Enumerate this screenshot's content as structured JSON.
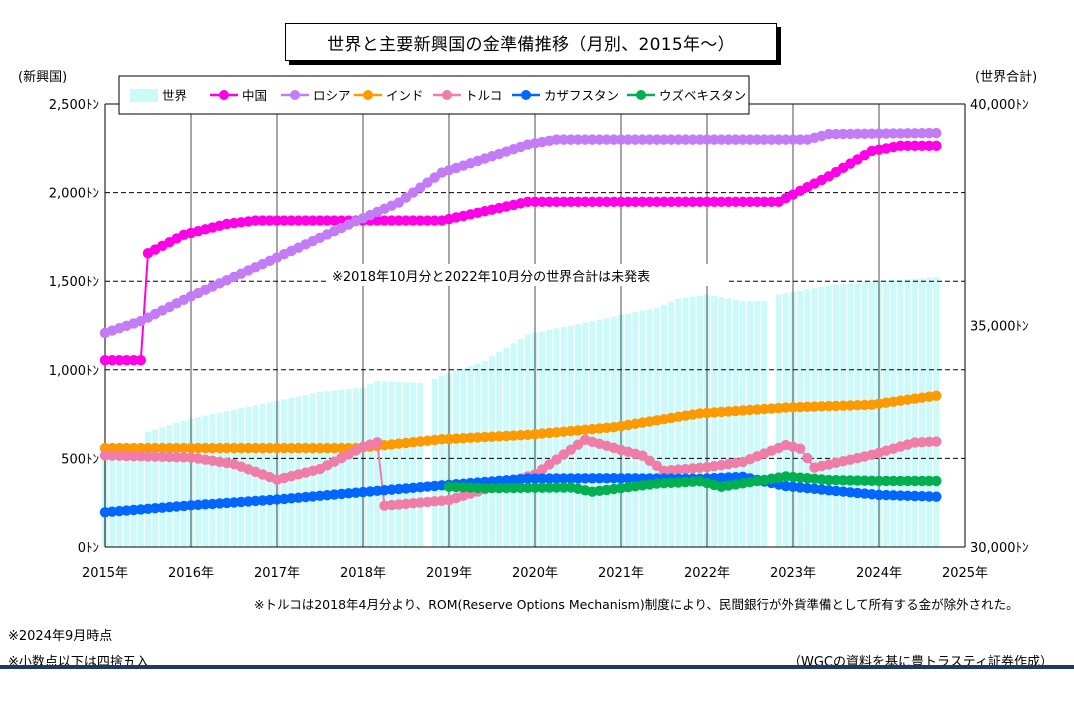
{
  "title": "世界と主要新興国の金準備推移（月別、2015年～）",
  "left_axis_label": "(新興国)",
  "right_axis_label": "(世界合計)",
  "annotation_main": "※2018年10月分と2022年10月分の世界合計は未発表",
  "footnote_turkey": "※トルコは2018年4月分より、ROM(Reserve Options Mechanism)制度により、民間銀行が外貨準備として所有する金が除外された。",
  "note_asof": "※2024年9月時点",
  "note_round": "※小数点以下は四捨五入",
  "source": "（WGCの資料を基に豊トラスティ証券作成）",
  "colors": {
    "world": "#ccfafa",
    "china": "#ff00e6",
    "russia": "#c37cf5",
    "india": "#ff9900",
    "turkey": "#f07ca8",
    "kazakhstan": "#0066ff",
    "uzbekistan": "#00b050"
  },
  "chart_data": {
    "type": "bar+line",
    "x_axis": {
      "ticks": [
        "2015年",
        "2016年",
        "2017年",
        "2018年",
        "2019年",
        "2020年",
        "2021年",
        "2022年",
        "2023年",
        "2024年",
        "2025年"
      ],
      "range": [
        "2015-01",
        "2025-01"
      ]
    },
    "y_left": {
      "label": "(新興国)",
      "unit": "t",
      "min": 0,
      "max": 2500,
      "ticks": [
        0,
        500,
        1000,
        1500,
        2000,
        2500
      ],
      "tick_labels": [
        "0ﾄﾝ",
        "500ﾄﾝ",
        "1,000ﾄﾝ",
        "1,500ﾄﾝ",
        "2,000ﾄﾝ",
        "2,500ﾄﾝ"
      ]
    },
    "y_right": {
      "label": "(世界合計)",
      "unit": "t",
      "min": 30000,
      "max": 40000,
      "ticks": [
        30000,
        35000,
        40000
      ],
      "tick_labels": [
        "30,000ﾄﾝ",
        "35,000ﾄﾝ",
        "40,000ﾄﾝ"
      ]
    },
    "grid": true,
    "legend_position": "top-left",
    "bar_series": {
      "name": "世界",
      "axis": "right",
      "points": [
        [
          "2015-01",
          32000
        ],
        [
          "2015-06",
          32200
        ],
        [
          "2015-07",
          32600
        ],
        [
          "2016-01",
          32900
        ],
        [
          "2016-07",
          33100
        ],
        [
          "2017-01",
          33300
        ],
        [
          "2017-07",
          33500
        ],
        [
          "2018-01",
          33600
        ],
        [
          "2018-03",
          33750
        ],
        [
          "2018-09",
          33700
        ],
        [
          "2018-11",
          33800
        ],
        [
          "2019-06",
          34200
        ],
        [
          "2019-12",
          34800
        ],
        [
          "2020-06",
          35000
        ],
        [
          "2020-12",
          35200
        ],
        [
          "2021-06",
          35400
        ],
        [
          "2021-09",
          35600
        ],
        [
          "2022-01",
          35700
        ],
        [
          "2022-06",
          35550
        ],
        [
          "2022-09",
          35550
        ],
        [
          "2022-11",
          35700
        ],
        [
          "2023-06",
          35900
        ],
        [
          "2023-12",
          36000
        ],
        [
          "2024-06",
          36050
        ],
        [
          "2024-09",
          36100
        ]
      ],
      "missing": [
        "2018-10",
        "2022-10"
      ]
    },
    "series": [
      {
        "name": "中国",
        "axis": "left",
        "points": [
          [
            "2015-01",
            1054
          ],
          [
            "2015-06",
            1054
          ],
          [
            "2015-07",
            1658
          ],
          [
            "2015-12",
            1762
          ],
          [
            "2016-06",
            1823
          ],
          [
            "2016-10",
            1842
          ],
          [
            "2018-12",
            1842
          ],
          [
            "2019-12",
            1948
          ],
          [
            "2022-11",
            1948
          ],
          [
            "2023-06",
            2092
          ],
          [
            "2023-12",
            2235
          ],
          [
            "2024-04",
            2264
          ],
          [
            "2024-09",
            2264
          ]
        ]
      },
      {
        "name": "ロシア",
        "axis": "left",
        "points": [
          [
            "2015-01",
            1208
          ],
          [
            "2015-06",
            1275
          ],
          [
            "2016-01",
            1415
          ],
          [
            "2016-12",
            1615
          ],
          [
            "2017-12",
            1838
          ],
          [
            "2018-06",
            1944
          ],
          [
            "2018-12",
            2113
          ],
          [
            "2019-12",
            2271
          ],
          [
            "2020-04",
            2299
          ],
          [
            "2023-03",
            2299
          ],
          [
            "2023-06",
            2330
          ],
          [
            "2024-09",
            2336
          ]
        ]
      },
      {
        "name": "インド",
        "axis": "left",
        "points": [
          [
            "2015-01",
            558
          ],
          [
            "2017-12",
            558
          ],
          [
            "2018-12",
            608
          ],
          [
            "2019-12",
            633
          ],
          [
            "2020-12",
            676
          ],
          [
            "2021-12",
            754
          ],
          [
            "2022-12",
            787
          ],
          [
            "2023-12",
            803
          ],
          [
            "2024-09",
            854
          ]
        ]
      },
      {
        "name": "トルコ",
        "axis": "left",
        "points": [
          [
            "2015-01",
            517
          ],
          [
            "2016-01",
            505
          ],
          [
            "2016-07",
            468
          ],
          [
            "2017-01",
            380
          ],
          [
            "2017-07",
            440
          ],
          [
            "2018-01",
            565
          ],
          [
            "2018-03",
            591
          ],
          [
            "2018-04",
            233
          ],
          [
            "2019-01",
            265
          ],
          [
            "2020-01",
            410
          ],
          [
            "2020-08",
            605
          ],
          [
            "2021-01",
            548
          ],
          [
            "2021-04",
            515
          ],
          [
            "2021-07",
            430
          ],
          [
            "2022-01",
            450
          ],
          [
            "2022-06",
            480
          ],
          [
            "2022-12",
            575
          ],
          [
            "2023-02",
            555
          ],
          [
            "2023-04",
            448
          ],
          [
            "2023-12",
            520
          ],
          [
            "2024-06",
            590
          ],
          [
            "2024-09",
            595
          ]
        ]
      },
      {
        "name": "カザフスタン",
        "axis": "left",
        "points": [
          [
            "2015-01",
            196
          ],
          [
            "2016-01",
            235
          ],
          [
            "2017-01",
            268
          ],
          [
            "2018-01",
            310
          ],
          [
            "2018-12",
            348
          ],
          [
            "2019-12",
            386
          ],
          [
            "2020-12",
            388
          ],
          [
            "2021-12",
            385
          ],
          [
            "2022-06",
            396
          ],
          [
            "2022-12",
            344
          ],
          [
            "2023-06",
            320
          ],
          [
            "2024-01",
            294
          ],
          [
            "2024-09",
            284
          ]
        ]
      },
      {
        "name": "ウズベキスタン",
        "axis": "left",
        "points": [
          [
            "2019-01",
            340
          ],
          [
            "2019-06",
            332
          ],
          [
            "2019-12",
            334
          ],
          [
            "2020-06",
            336
          ],
          [
            "2020-09",
            312
          ],
          [
            "2021-06",
            358
          ],
          [
            "2021-12",
            371
          ],
          [
            "2022-03",
            340
          ],
          [
            "2022-12",
            398
          ],
          [
            "2023-06",
            378
          ],
          [
            "2024-01",
            373
          ],
          [
            "2024-09",
            373
          ]
        ]
      }
    ]
  }
}
